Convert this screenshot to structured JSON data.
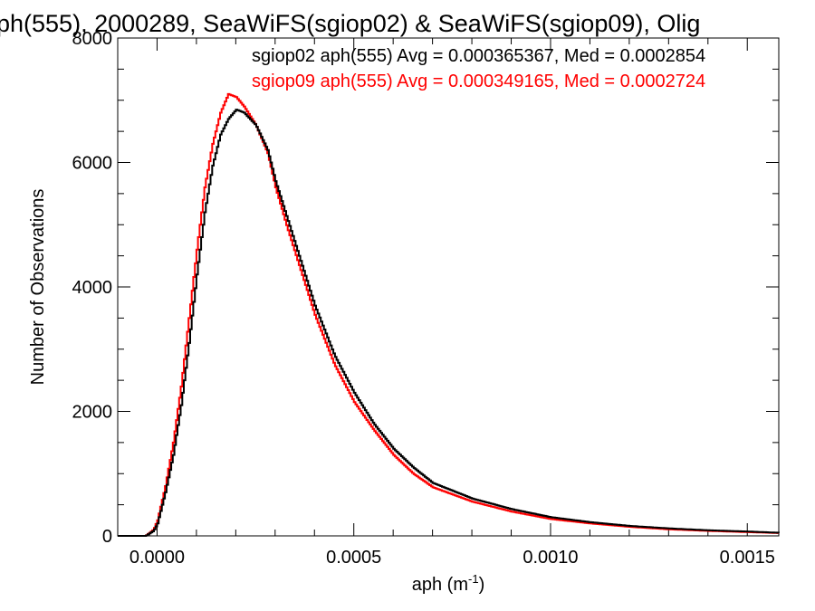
{
  "chart_data": {
    "type": "line",
    "title": "ph(555), 2000289, SeaWiFS(sgiop02) & SeaWiFS(sgiop09), Olig",
    "xlabel_base": "aph (m",
    "xlabel_sup": "-1",
    "xlabel_end": ")",
    "ylabel": "Number of Observations",
    "xlim": [
      -0.0001,
      0.00158
    ],
    "ylim": [
      0,
      8000
    ],
    "x_ticks": [
      0.0,
      0.0005,
      0.001,
      0.0015
    ],
    "x_tick_labels": [
      "0.0000",
      "0.0005",
      "0.0010",
      "0.0015"
    ],
    "y_ticks": [
      0,
      2000,
      4000,
      6000,
      8000
    ],
    "y_tick_labels": [
      "0",
      "2000",
      "4000",
      "6000",
      "8000"
    ],
    "grid": false,
    "legend_position": "top-right",
    "colors": {
      "sgiop02": "#000000",
      "sgiop09": "#ff0000"
    },
    "annotations": [
      {
        "text": "sgiop02 aph(555) Avg = 0.000365367, Med = 0.0002854",
        "color": "#000000"
      },
      {
        "text": "sgiop09 aph(555) Avg = 0.000349165, Med = 0.0002724",
        "color": "#ff0000"
      }
    ],
    "series": [
      {
        "color": "#000000",
        "x": [
          -0.0001,
          -3e-05,
          -1e-05,
          0.0,
          2e-05,
          4e-05,
          6e-05,
          8e-05,
          0.0001,
          0.00012,
          0.00014,
          0.00016,
          0.00018,
          0.0002,
          0.00022,
          0.00025,
          0.00028,
          0.0003,
          0.00033,
          0.00036,
          0.0004,
          0.00045,
          0.0005,
          0.00055,
          0.0006,
          0.00065,
          0.0007,
          0.0008,
          0.0009,
          0.001,
          0.0011,
          0.0012,
          0.0013,
          0.0014,
          0.0015,
          0.00158
        ],
        "y": [
          0,
          0,
          80,
          200,
          700,
          1300,
          2100,
          3100,
          4200,
          5200,
          5950,
          6450,
          6700,
          6850,
          6800,
          6600,
          6200,
          5700,
          5100,
          4500,
          3700,
          2900,
          2300,
          1800,
          1400,
          1100,
          850,
          600,
          430,
          300,
          220,
          160,
          120,
          90,
          70,
          50
        ]
      },
      {
        "color": "#ff0000",
        "x": [
          -0.0001,
          -3e-05,
          -1e-05,
          0.0,
          2e-05,
          4e-05,
          6e-05,
          8e-05,
          0.0001,
          0.00012,
          0.00014,
          0.00016,
          0.00018,
          0.0002,
          0.00022,
          0.00025,
          0.00028,
          0.0003,
          0.00033,
          0.00036,
          0.0004,
          0.00045,
          0.0005,
          0.00055,
          0.0006,
          0.00065,
          0.0007,
          0.0008,
          0.0009,
          0.001,
          0.0011,
          0.0012,
          0.0013,
          0.0014,
          0.0015,
          0.00158
        ],
        "y": [
          0,
          0,
          100,
          250,
          800,
          1500,
          2400,
          3500,
          4600,
          5600,
          6300,
          6800,
          7100,
          7050,
          6900,
          6600,
          6150,
          5600,
          4950,
          4350,
          3550,
          2750,
          2150,
          1700,
          1300,
          1000,
          780,
          550,
          390,
          270,
          200,
          145,
          105,
          80,
          60,
          45
        ]
      }
    ]
  }
}
